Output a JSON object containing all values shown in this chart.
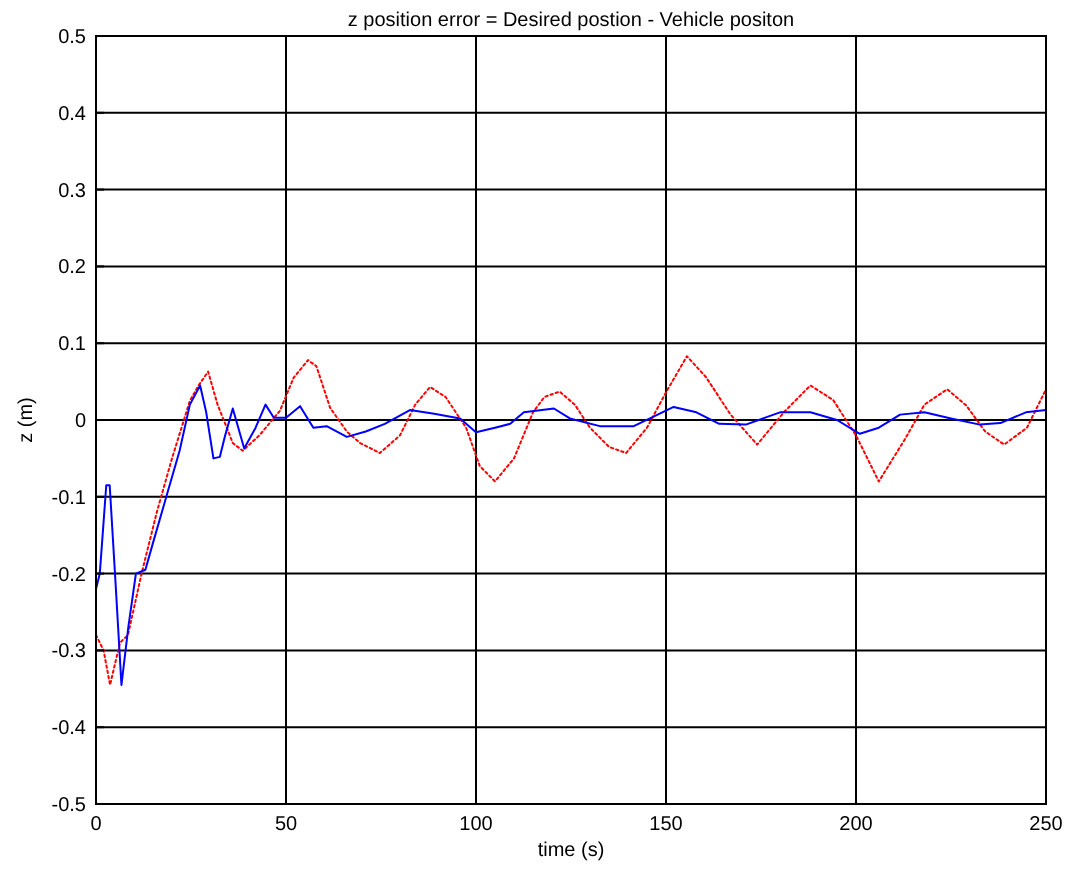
{
  "chart_data": {
    "type": "line",
    "title": "z position error = Desired postion - Vehicle positon",
    "xlabel": "time (s)",
    "ylabel": "z (m)",
    "xlim": [
      0,
      250
    ],
    "ylim": [
      -0.5,
      0.5
    ],
    "xticks": [
      0,
      50,
      100,
      150,
      200,
      250
    ],
    "yticks": [
      -0.5,
      -0.4,
      -0.3,
      -0.2,
      -0.1,
      0,
      0.1,
      0.2,
      0.3,
      0.4,
      0.5
    ],
    "grid": true,
    "marker": "none",
    "series": [
      {
        "color": "#ff0000",
        "line_style": "dotted",
        "x": [
          0,
          2,
          3.7,
          6.3,
          8.4,
          12,
          16,
          20,
          24.7,
          27,
          29.5,
          32,
          36,
          38.6,
          43,
          48.4,
          52,
          55.8,
          58,
          61.6,
          66,
          69.5,
          74.7,
          80,
          84,
          87.9,
          92,
          97.4,
          101,
          105,
          110,
          115,
          118,
          122,
          126,
          130,
          135,
          139.5,
          145,
          150,
          155.5,
          160.5,
          167,
          174,
          181,
          188,
          194,
          200,
          206,
          213,
          218,
          224,
          229,
          234,
          239,
          245,
          250
        ],
        "values": [
          -0.28,
          -0.3,
          -0.345,
          -0.29,
          -0.28,
          -0.2,
          -0.12,
          -0.05,
          0.025,
          0.045,
          0.063,
          0.02,
          -0.03,
          -0.04,
          -0.02,
          0.012,
          0.055,
          0.078,
          0.07,
          0.016,
          -0.015,
          -0.03,
          -0.043,
          -0.02,
          0.02,
          0.043,
          0.03,
          -0.01,
          -0.06,
          -0.08,
          -0.05,
          0.01,
          0.03,
          0.037,
          0.02,
          -0.01,
          -0.035,
          -0.043,
          -0.01,
          0.036,
          0.083,
          0.056,
          0.007,
          -0.032,
          0.01,
          0.045,
          0.026,
          -0.02,
          -0.08,
          -0.024,
          0.02,
          0.04,
          0.019,
          -0.015,
          -0.032,
          -0.01,
          0.04
        ]
      },
      {
        "color": "#0000ff",
        "line_style": "solid",
        "x": [
          0,
          1,
          2.7,
          3.6,
          5,
          6.7,
          8.5,
          10.5,
          13,
          15,
          18.5,
          22,
          24.7,
          27.4,
          29,
          30.9,
          32.6,
          34,
          36,
          39,
          42,
          44.6,
          46.8,
          50,
          53.7,
          57.2,
          60.7,
          66,
          71,
          76,
          82.6,
          89,
          95.8,
          100,
          105,
          109,
          112.6,
          120.5,
          124.7,
          132.6,
          141.5,
          147,
          152,
          158,
          164,
          171,
          180,
          188,
          195,
          201,
          206,
          211.6,
          218,
          225,
          232.6,
          238,
          244.7,
          250
        ],
        "values": [
          -0.22,
          -0.2,
          -0.085,
          -0.085,
          -0.2,
          -0.345,
          -0.27,
          -0.2,
          -0.195,
          -0.16,
          -0.1,
          -0.04,
          0.02,
          0.045,
          0.01,
          -0.05,
          -0.048,
          -0.02,
          0.015,
          -0.037,
          -0.01,
          0.02,
          0.003,
          0.003,
          0.018,
          -0.01,
          -0.008,
          -0.022,
          -0.015,
          -0.005,
          0.013,
          0.008,
          0.002,
          -0.016,
          -0.01,
          -0.005,
          0.01,
          0.015,
          0.002,
          -0.008,
          -0.008,
          0.005,
          0.017,
          0.01,
          -0.005,
          -0.006,
          0.01,
          0.01,
          0.0,
          -0.018,
          -0.01,
          0.007,
          0.01,
          0.002,
          -0.006,
          -0.004,
          0.01,
          0.013
        ]
      }
    ]
  }
}
